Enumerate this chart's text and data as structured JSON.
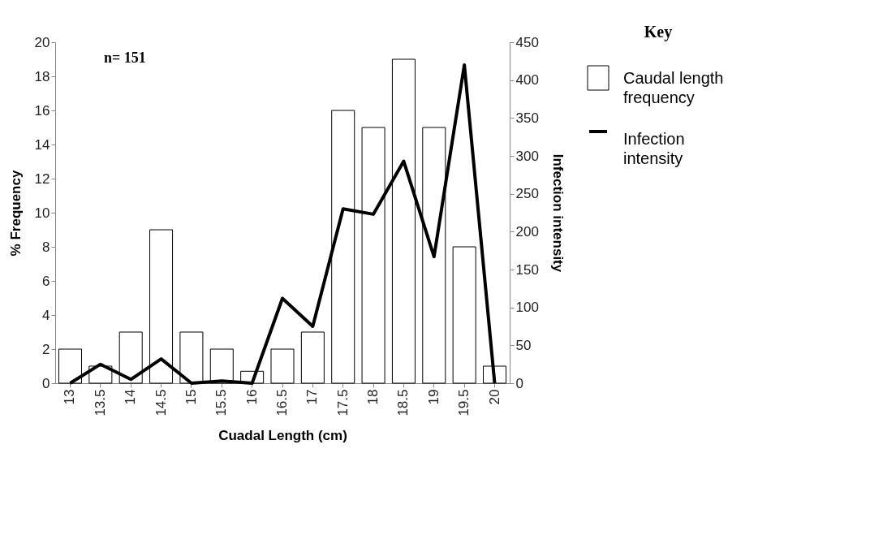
{
  "chart_data": {
    "type": "bar",
    "xlabel": "Cuadal Length (cm)",
    "ylabel": "% Frequency",
    "y2label": "Infection intensity",
    "legend_title": "Key",
    "legend": "right",
    "grid": false,
    "annotations": [
      "n= 151"
    ],
    "categories": [
      "13",
      "13.5",
      "14",
      "14.5",
      "15",
      "15.5",
      "16",
      "16.5",
      "17",
      "17.5",
      "18",
      "18.5",
      "19",
      "19.5",
      "20"
    ],
    "ylim": [
      0,
      20
    ],
    "yticks": [
      0,
      2,
      4,
      6,
      8,
      10,
      12,
      14,
      16,
      18,
      20
    ],
    "y2lim": [
      0,
      450
    ],
    "y2ticks": [
      0,
      50,
      100,
      150,
      200,
      250,
      300,
      350,
      400,
      450
    ],
    "series": [
      {
        "name": "Caudal length frequency",
        "color": "#ffffff",
        "values": [
          2,
          1,
          3,
          9,
          3,
          2,
          0.7,
          2,
          3,
          16,
          15,
          19,
          15,
          8,
          1
        ]
      },
      {
        "name": "Infection intensity",
        "type": "line",
        "axis": "y2",
        "color": "#000000",
        "values": [
          0,
          25,
          5,
          32,
          0,
          3,
          0,
          112,
          75,
          230,
          223,
          293,
          167,
          420,
          0
        ]
      }
    ]
  }
}
